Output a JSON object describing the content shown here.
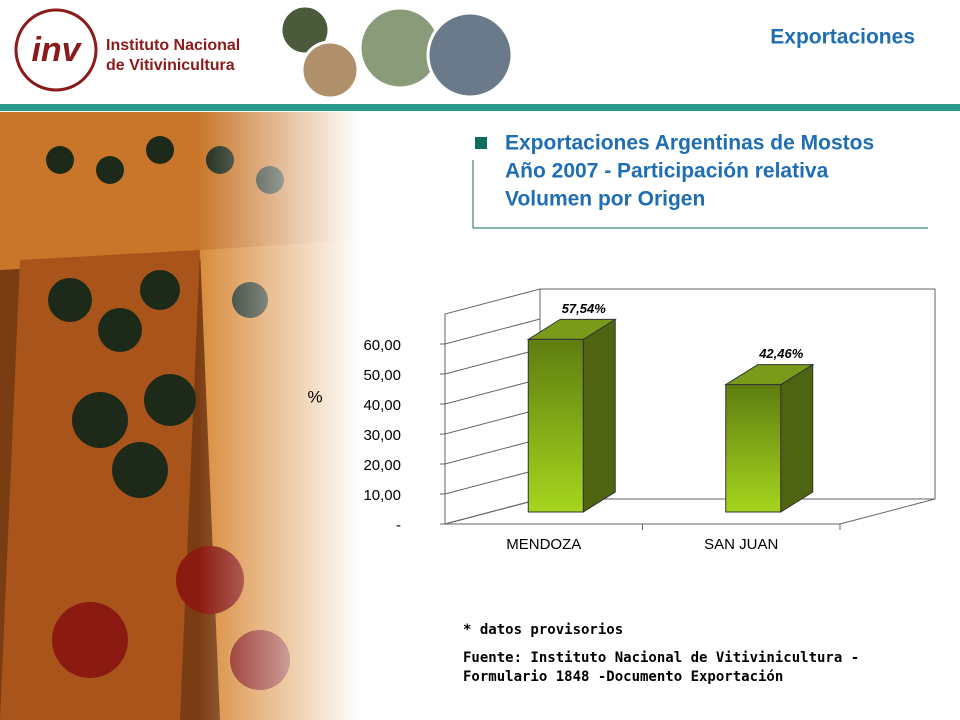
{
  "header": {
    "title": "Exportaciones",
    "logo_mark": "inv",
    "logo_text": [
      "Instituto Nacional",
      "de Vitivinicultura"
    ]
  },
  "chart_data": {
    "type": "bar3d",
    "title": [
      "Exportaciones Argentinas de Mostos",
      "Año 2007 - Participación relativa",
      "Volumen por Origen"
    ],
    "y_label": "%",
    "categories": [
      "MENDOZA",
      "SAN JUAN"
    ],
    "values": [
      57.54,
      42.46
    ],
    "value_labels": [
      "57,54%",
      "42,46%"
    ],
    "color": "#8fbc1a",
    "ylim": [
      0,
      70
    ],
    "yticks": [
      {
        "value": 0,
        "label": "-"
      },
      {
        "value": 10,
        "label": "10,00"
      },
      {
        "value": 20,
        "label": "20,00"
      },
      {
        "value": 30,
        "label": "30,00"
      },
      {
        "value": 40,
        "label": "40,00"
      },
      {
        "value": 50,
        "label": "50,00"
      },
      {
        "value": 60,
        "label": "60,00"
      }
    ],
    "grid": true
  },
  "notes": {
    "provisional": "* datos provisorios",
    "source": [
      "Fuente: Instituto Nacional de Vitivinicultura -",
      "Formulario 1848 -Documento Exportación"
    ]
  }
}
